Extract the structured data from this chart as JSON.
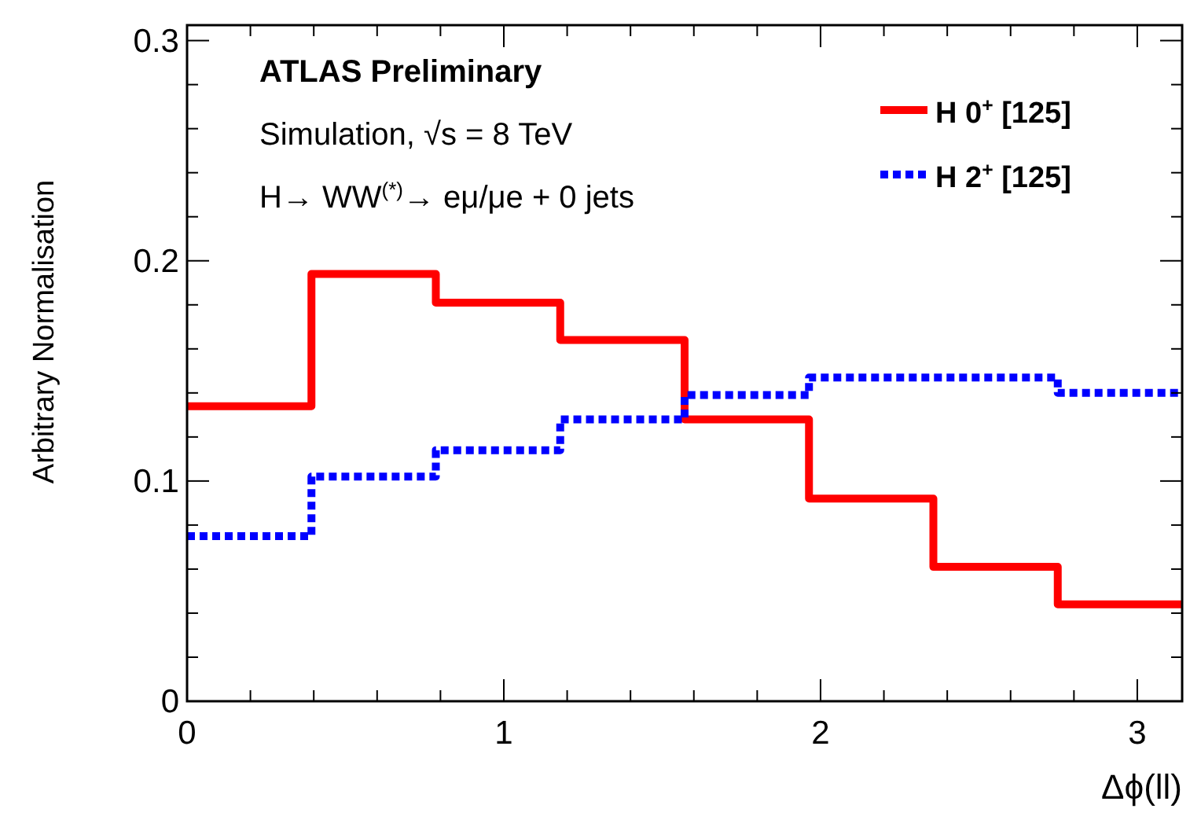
{
  "chart_data": {
    "type": "histogram",
    "xlabel": "Δϕ(ll)",
    "ylabel": "Arbitrary Normalisation",
    "annotations": [
      "ATLAS Preliminary",
      "Simulation, √s = 8 TeV",
      "H→ WW$^{(*)}$→ eμ/μe + 0 jets"
    ],
    "bins": [
      0,
      0.3927,
      0.7854,
      1.1781,
      1.5708,
      1.9635,
      2.3562,
      2.7489,
      3.1416
    ],
    "series": [
      {
        "name": "H 0$^{+}$ [125]",
        "color": "#ff0000",
        "line_style": "solid",
        "values": [
          0.134,
          0.194,
          0.181,
          0.164,
          0.128,
          0.092,
          0.061,
          0.044
        ]
      },
      {
        "name": "H 2$^{+}$ [125]",
        "color": "#0000ff",
        "line_style": "dotted",
        "values": [
          0.075,
          0.102,
          0.114,
          0.128,
          0.139,
          0.147,
          0.147,
          0.14
        ]
      }
    ],
    "xlim": [
      0,
      3.1416
    ],
    "ylim": [
      0,
      0.307
    ],
    "xticks": [
      0,
      {
        "value": 0.2,
        "label": null
      },
      {
        "value": 0.4,
        "label": null
      },
      {
        "value": 0.6,
        "label": null
      },
      {
        "value": 0.8,
        "label": null
      },
      1,
      {
        "value": 1.2,
        "label": null
      },
      {
        "value": 1.4,
        "label": null
      },
      {
        "value": 1.6,
        "label": null
      },
      {
        "value": 1.8,
        "label": null
      },
      2,
      {
        "value": 2.2,
        "label": null
      },
      {
        "value": 2.4,
        "label": null
      },
      {
        "value": 2.6,
        "label": null
      },
      {
        "value": 2.8,
        "label": null
      },
      3
    ],
    "yticks": [
      0,
      {
        "value": 0.02,
        "label": null
      },
      {
        "value": 0.04,
        "label": null
      },
      {
        "value": 0.06,
        "label": null
      },
      {
        "value": 0.08,
        "label": null
      },
      0.1,
      {
        "value": 0.12,
        "label": null
      },
      {
        "value": 0.14,
        "label": null
      },
      {
        "value": 0.16,
        "label": null
      },
      {
        "value": 0.18,
        "label": null
      },
      0.2,
      {
        "value": 0.22,
        "label": null
      },
      {
        "value": 0.24,
        "label": null
      },
      {
        "value": 0.26,
        "label": null
      },
      {
        "value": 0.28,
        "label": null
      },
      0.3
    ],
    "legend": "top right",
    "grid": false
  }
}
